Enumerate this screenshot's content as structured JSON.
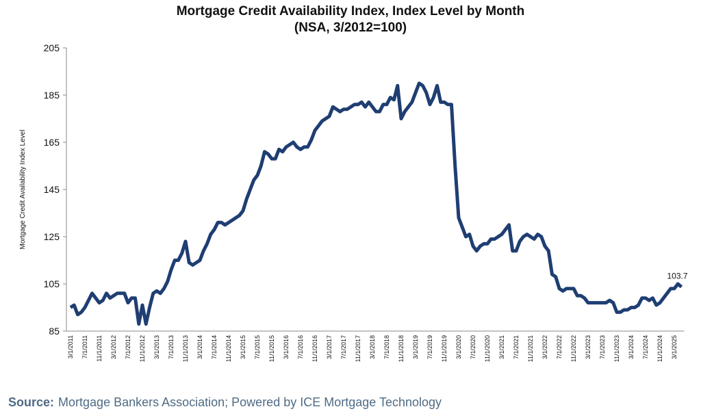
{
  "chart_data": {
    "type": "line",
    "title": "Mortgage Credit Availability Index, Index Level by Month",
    "subtitle": "(NSA, 3/2012=100)",
    "y_label": "Mortgage Credit Availability Index Level",
    "color": "#1f3e72",
    "ylim": [
      85,
      205
    ],
    "yticks": [
      85,
      105,
      125,
      145,
      165,
      185,
      205
    ],
    "categories": [
      "3/1/2011",
      null,
      null,
      null,
      "7/1/2011",
      null,
      null,
      null,
      "11/1/2011",
      null,
      null,
      null,
      "3/1/2012",
      null,
      null,
      null,
      "7/1/2012",
      null,
      null,
      null,
      "11/1/2012",
      null,
      null,
      null,
      "3/1/2013",
      null,
      null,
      null,
      "7/1/2013",
      null,
      null,
      null,
      "11/1/2013",
      null,
      null,
      null,
      "3/1/2014",
      null,
      null,
      null,
      "7/1/2014",
      null,
      null,
      null,
      "11/1/2014",
      null,
      null,
      null,
      "3/1/2015",
      null,
      null,
      null,
      "7/1/2015",
      null,
      null,
      null,
      "11/1/2015",
      null,
      null,
      null,
      "3/1/2016",
      null,
      null,
      null,
      "7/1/2016",
      null,
      null,
      null,
      "11/1/2016",
      null,
      null,
      null,
      "3/1/2017",
      null,
      null,
      null,
      "7/1/2017",
      null,
      null,
      null,
      "11/1/2017",
      null,
      null,
      null,
      "3/1/2018",
      null,
      null,
      null,
      "7/1/2018",
      null,
      null,
      null,
      "11/1/2018",
      null,
      null,
      null,
      "3/1/2019",
      null,
      null,
      null,
      "7/1/2019",
      null,
      null,
      null,
      "11/1/2019",
      null,
      null,
      null,
      "3/1/2020",
      null,
      null,
      null,
      "7/1/2020",
      null,
      null,
      null,
      "11/1/2020",
      null,
      null,
      null,
      "3/1/2021",
      null,
      null,
      null,
      "7/1/2021",
      null,
      null,
      null,
      "11/1/2021",
      null,
      null,
      null,
      "3/1/2022",
      null,
      null,
      null,
      "7/1/2022",
      null,
      null,
      null,
      "11/1/2022",
      null,
      null,
      null,
      "3/1/2023",
      null,
      null,
      null,
      "7/1/2023",
      null,
      null,
      null,
      "11/1/2023",
      null,
      null,
      null,
      "3/1/2024",
      null,
      null,
      null,
      "7/1/2024",
      null,
      null,
      null,
      "11/1/2024",
      null,
      null,
      null,
      "3/1/2025",
      null,
      null
    ],
    "values": [
      95,
      96,
      92,
      93,
      95,
      98,
      101,
      99,
      97,
      98,
      101,
      99,
      100,
      101,
      101,
      101,
      97,
      99,
      99,
      88,
      96,
      88,
      95,
      101,
      102,
      101,
      103,
      106,
      111,
      115,
      115,
      118,
      123,
      114,
      113,
      114,
      115,
      119,
      122,
      126,
      128,
      131,
      131,
      130,
      131,
      132,
      133,
      134,
      136,
      141,
      145,
      149,
      151,
      155,
      161,
      160,
      158,
      158,
      162,
      161,
      163,
      164,
      165,
      163,
      162,
      163,
      163,
      166,
      170,
      172,
      174,
      175,
      176,
      180,
      179,
      178,
      179,
      179,
      180,
      181,
      181,
      182,
      180,
      182,
      180,
      178,
      178,
      181,
      181,
      184,
      183,
      189,
      175,
      178,
      180,
      182,
      186,
      190,
      189,
      186,
      181,
      184,
      189,
      182,
      182,
      181,
      181,
      155,
      133,
      129,
      125,
      126,
      121,
      119,
      121,
      122,
      122,
      124,
      124,
      125,
      126,
      128,
      130,
      119,
      119,
      123,
      125,
      126,
      125,
      124,
      126,
      125,
      121,
      119,
      109,
      108,
      103,
      102,
      103,
      103,
      103,
      100,
      100,
      99,
      97,
      97,
      97,
      97,
      97,
      97,
      98,
      97,
      93,
      93,
      94,
      94,
      95,
      95,
      96,
      99,
      99,
      98,
      99,
      96,
      97,
      99,
      101,
      103,
      103,
      105,
      103.7
    ],
    "source_label": "Source:",
    "source": "Mortgage Bankers Association; Powered by ICE Mortgage Technology"
  }
}
